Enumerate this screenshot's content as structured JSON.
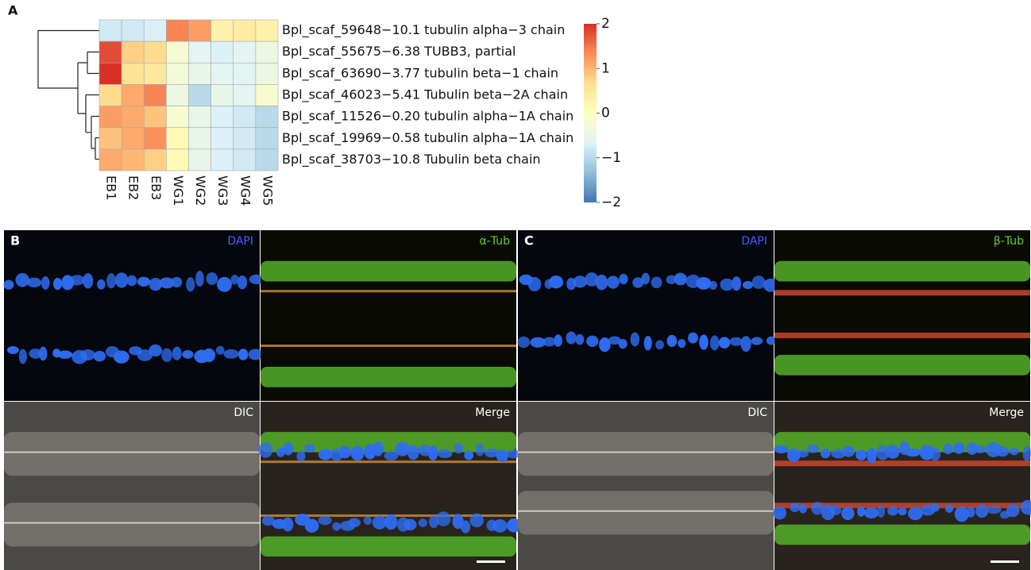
{
  "chart_data": {
    "type": "heatmap",
    "panel_label": "A",
    "rows": [
      "Bpl_scaf_59648−10.1 tubulin alpha−3 chain",
      "Bpl_scaf_55675−6.38 TUBB3, partial",
      "Bpl_scaf_63690−3.77 tubulin beta−1 chain",
      "Bpl_scaf_46023−5.41 Tubulin beta−2A chain",
      "Bpl_scaf_11526−0.20 tubulin alpha−1A chain",
      "Bpl_scaf_19969−0.58 tubulin alpha−1A chain",
      "Bpl_scaf_38703−10.8 Tubulin beta chain"
    ],
    "columns": [
      "EB1",
      "EB2",
      "EB3",
      "WG1",
      "WG2",
      "WG3",
      "WG4",
      "WG5"
    ],
    "values": [
      [
        -0.8,
        -0.8,
        -0.7,
        1.4,
        1.2,
        0.3,
        0.4,
        0.3
      ],
      [
        1.8,
        0.8,
        0.7,
        -0.2,
        -0.6,
        -0.7,
        -0.6,
        -0.4
      ],
      [
        2.0,
        0.6,
        0.5,
        -0.3,
        -0.5,
        -0.6,
        -0.6,
        -0.4
      ],
      [
        0.7,
        1.1,
        1.4,
        -0.4,
        -1.0,
        -0.5,
        -0.6,
        -0.2
      ],
      [
        1.2,
        1.1,
        0.9,
        -0.2,
        -0.5,
        -0.7,
        -0.8,
        -1.0
      ],
      [
        0.9,
        1.1,
        1.3,
        0.1,
        -0.5,
        -0.7,
        -0.8,
        -1.0
      ],
      [
        1.1,
        1.0,
        0.8,
        0.1,
        -0.5,
        -0.7,
        -0.8,
        -1.0
      ]
    ],
    "colors": [
      "#4575b4",
      "#91bfdb",
      "#e0f3f8",
      "#ffffbf",
      "#fee090",
      "#fc8d59",
      "#d73027"
    ],
    "clim": [
      -2,
      2
    ],
    "cticks": [
      2,
      1,
      0,
      {
        "value": -1,
        "label": "−1"
      },
      {
        "value": -2,
        "label": "−2"
      }
    ]
  },
  "figure": {
    "panels": [
      {
        "label": "B",
        "images": [
          {
            "label": "DAPI",
            "color": "#4f5cff",
            "kind": "dapi"
          },
          {
            "label": "α-Tub",
            "color": "#5fd12f",
            "kind": "tub"
          },
          {
            "label": "DIC",
            "color": "#ffffff",
            "kind": "dic"
          },
          {
            "label": "Merge",
            "color": "#ffffff",
            "kind": "merge"
          }
        ]
      },
      {
        "label": "C",
        "images": [
          {
            "label": "DAPI",
            "color": "#4f5cff",
            "kind": "dapi"
          },
          {
            "label": "β-Tub",
            "color": "#5fd12f",
            "kind": "tub"
          },
          {
            "label": "DIC",
            "color": "#ffffff",
            "kind": "dic"
          },
          {
            "label": "Merge",
            "color": "#ffffff",
            "kind": "merge"
          }
        ]
      }
    ]
  }
}
